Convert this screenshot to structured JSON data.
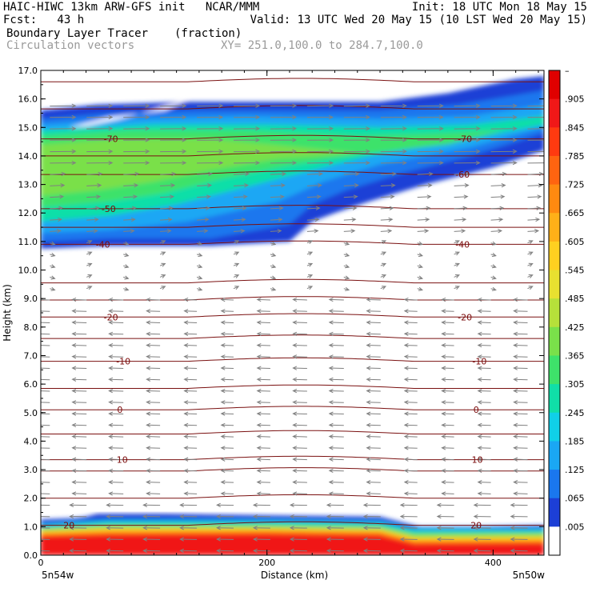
{
  "header": {
    "line1_left": "HAIC-HIWC 13km ARW-GFS init   NCAR/MMM",
    "line1_right": "Init: 18 UTC Mon 18 May 15",
    "line2_left": "Fcst:   43 h",
    "line2_right": "Valid: 13 UTC Wed 20 May 15 (10 LST Wed 20 May 15)",
    "line3_left": "Boundary Layer Tracer",
    "line3_mid": "(fraction)",
    "line4_left": "Circulation vectors",
    "line4_mid": "XY= 251.0,100.0 to 284.7,100.0"
  },
  "chart_data": {
    "type": "heatmap",
    "title": "Boundary Layer Tracer",
    "units": "(fraction)",
    "overlay": "Circulation vectors",
    "xlabel": "Distance (km)",
    "ylabel": "Height (km)",
    "xlim": [
      0,
      445
    ],
    "ylim": [
      0,
      17
    ],
    "x_ticks": [
      0,
      200,
      400
    ],
    "y_ticks": [
      "0.0",
      "1.0",
      "2.0",
      "3.0",
      "4.0",
      "5.0",
      "6.0",
      "7.0",
      "8.0",
      "9.0",
      "10.0",
      "11.0",
      "12.0",
      "13.0",
      "14.0",
      "15.0",
      "16.0",
      "17.0"
    ],
    "x_endpoints": [
      "5n54w",
      "5n50w"
    ],
    "colorbar": {
      "labels": [
        ".005",
        ".065",
        ".125",
        ".185",
        ".245",
        ".305",
        ".365",
        ".425",
        ".485",
        ".545",
        ".605",
        ".665",
        ".725",
        ".785",
        ".845",
        ".905",
        "–"
      ],
      "colors": [
        "#ffffff",
        "#1c3fd6",
        "#1a77ee",
        "#1aa7f4",
        "#10d0e8",
        "#10dfa8",
        "#3ee26a",
        "#7ae04a",
        "#b6e03a",
        "#e8e030",
        "#ffd020",
        "#ffb018",
        "#ff8a10",
        "#ff6410",
        "#ff3a10",
        "#f01818",
        "#e00000"
      ]
    },
    "temperature_contours": [
      {
        "label": "-70",
        "height_km": 14.6
      },
      {
        "label": "-50",
        "height_km": 12.15
      },
      {
        "label": "-40",
        "height_km": 10.9
      },
      {
        "label": "-20",
        "height_km": 8.35
      },
      {
        "label": "-10",
        "height_km": 6.8
      },
      {
        "label": "0",
        "height_km": 5.1
      },
      {
        "label": "10",
        "height_km": 3.35
      },
      {
        "label": "20",
        "height_km": 1.05
      }
    ],
    "contour_label_positions_km": [
      {
        "label": "-70",
        "x": 62
      },
      {
        "label": "-70",
        "x": 375
      },
      {
        "label": "-60",
        "x": 373
      },
      {
        "label": "-50",
        "x": 60
      },
      {
        "label": "-40",
        "x": 55
      },
      {
        "label": "-40",
        "x": 373
      },
      {
        "label": "-20",
        "x": 62
      },
      {
        "label": "-20",
        "x": 375
      },
      {
        "label": "-10",
        "x": 73
      },
      {
        "label": "-10",
        "x": 388
      },
      {
        "label": "0",
        "x": 70
      },
      {
        "label": "0",
        "x": 385
      },
      {
        "label": "10",
        "x": 72
      },
      {
        "label": "10",
        "x": 386
      },
      {
        "label": "20",
        "x": 25
      },
      {
        "label": "20",
        "x": 385
      }
    ]
  }
}
